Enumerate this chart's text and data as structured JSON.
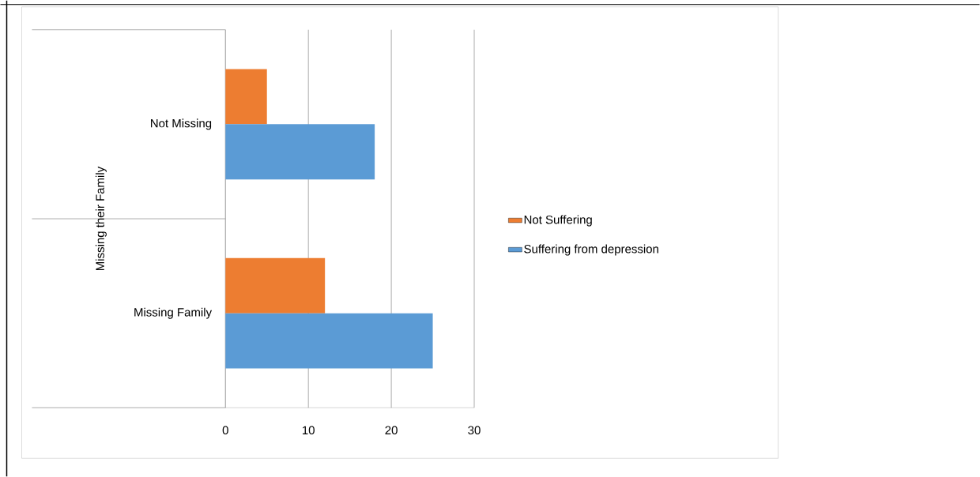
{
  "chart_data": {
    "type": "bar",
    "orientation": "horizontal",
    "ylabel": "Missing their Family",
    "categories": [
      "Not Missing",
      "Missing Family"
    ],
    "series": [
      {
        "name": "Not Suffering",
        "color": "#ed7d31",
        "values": [
          5,
          12
        ]
      },
      {
        "name": "Suffering from depression",
        "color": "#5b9bd5",
        "values": [
          18,
          25
        ]
      }
    ],
    "xlim": [
      0,
      30
    ],
    "xticks": [
      0,
      10,
      20,
      30
    ],
    "grid": "x",
    "legend": "right"
  }
}
